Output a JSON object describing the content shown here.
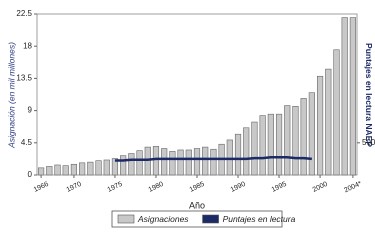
{
  "chart_data": {
    "type": "bar",
    "x_label": "Año",
    "y_label": "Asignación (en mil millones)",
    "y2_label": "Puntajes en lectura NAEP",
    "categories": [
      "1966",
      null,
      null,
      null,
      "1970",
      null,
      null,
      null,
      null,
      "1975",
      null,
      null,
      null,
      null,
      "1980",
      null,
      null,
      null,
      null,
      "1985",
      null,
      null,
      null,
      null,
      "1990",
      null,
      null,
      null,
      null,
      "1995",
      null,
      null,
      null,
      null,
      "2000",
      null,
      null,
      null,
      "2004*"
    ],
    "series": [
      {
        "name": "Asignaciones",
        "color": "#c8c8c8",
        "values": [
          1.0,
          1.2,
          1.4,
          1.3,
          1.5,
          1.7,
          1.8,
          2.0,
          2.1,
          2.3,
          2.7,
          3.0,
          3.4,
          3.9,
          4.0,
          3.7,
          3.3,
          3.5,
          3.5,
          3.7,
          3.9,
          3.6,
          4.3,
          4.9,
          5.7,
          6.6,
          7.4,
          8.3,
          8.5,
          8.5,
          9.7,
          9.6,
          10.7,
          11.5,
          13.8,
          14.8,
          17.5,
          22,
          22
        ]
      },
      {
        "name": "Puntajes en lectura",
        "color": "#1c2a66",
        "axis": "y2",
        "type": "line",
        "values": [
          null,
          null,
          null,
          null,
          null,
          null,
          null,
          null,
          null,
          489,
          489,
          489.5,
          489.5,
          489.5,
          490,
          490,
          490,
          490,
          490,
          490,
          490,
          490,
          490,
          490,
          490,
          490,
          490.5,
          490.5,
          491,
          491,
          491,
          490.5,
          490.5,
          490,
          null,
          null,
          null,
          null,
          null
        ]
      }
    ],
    "ylim": [
      0,
      22.5
    ],
    "yticks": [
      0,
      4.5,
      9,
      13.5,
      18,
      22.5
    ],
    "y2lim": [
      480,
      580
    ],
    "y2ticks": [
      500
    ],
    "legend": "bottom"
  }
}
